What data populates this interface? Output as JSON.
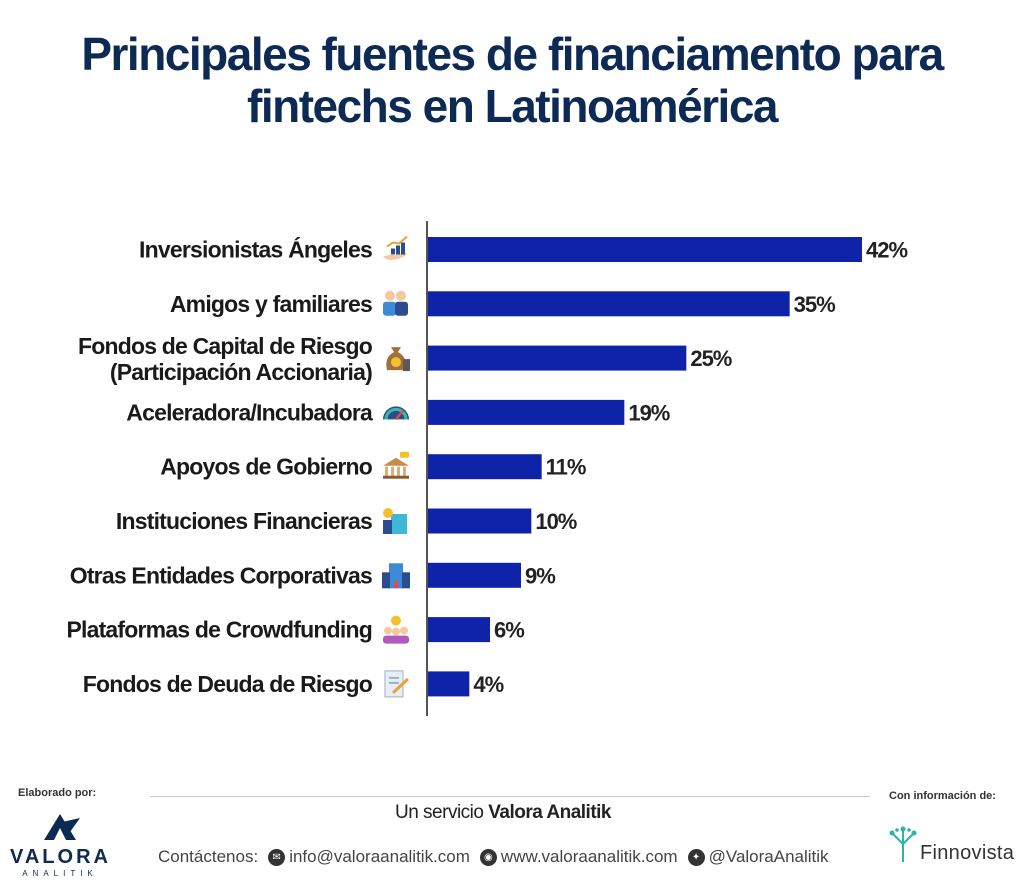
{
  "title": {
    "line1": "Principales fuentes de financiamento para",
    "line2": "fintechs en Latinoamérica"
  },
  "colors": {
    "bar": "#0f23a9",
    "title": "#0d2a55",
    "axis": "#555555"
  },
  "chart_data": {
    "type": "bar",
    "orientation": "horizontal",
    "title": "Principales fuentes de financiamento para fintechs en Latinoamérica",
    "xlabel": "",
    "ylabel": "",
    "xlim": [
      0,
      42
    ],
    "grid": false,
    "categories": [
      [
        "Inversionistas Ángeles"
      ],
      [
        "Amigos y familiares"
      ],
      [
        "Fondos de Capital de Riesgo",
        "(Participación Accionaria)"
      ],
      [
        "Aceleradora/Incubadora"
      ],
      [
        "Apoyos de Gobierno"
      ],
      [
        "Instituciones Financieras"
      ],
      [
        "Otras Entidades Corporativas"
      ],
      [
        "Plataformas de Crowdfunding"
      ],
      [
        "Fondos de Deuda de Riesgo"
      ]
    ],
    "icons": [
      "hand-chart-icon",
      "people-icon",
      "money-bag-icon",
      "speedometer-icon",
      "government-building-icon",
      "financial-building-icon",
      "corporate-building-icon",
      "crowd-money-icon",
      "document-icon"
    ],
    "values": [
      42,
      35,
      25,
      19,
      11,
      10,
      9,
      6,
      4
    ],
    "value_labels": [
      "42%",
      "35%",
      "25%",
      "19%",
      "11%",
      "10%",
      "9%",
      "6%",
      "4%"
    ]
  },
  "footer": {
    "made_by": "Elaborado por:",
    "info_from": "Con información de:",
    "service_prefix": "Un servicio",
    "service_brand": "Valora Analitik",
    "contact_label": "Contáctenos:",
    "email": "info@valoraanalitik.com",
    "website": "www.valoraanalitik.com",
    "twitter": "@ValoraAnalitik",
    "brand_left": "VALORA",
    "brand_left_sub": "ANALITIK",
    "brand_right": "Finnovista"
  }
}
